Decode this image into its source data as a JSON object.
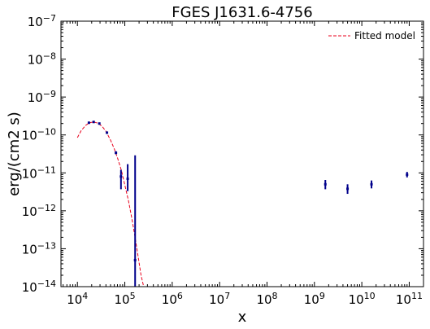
{
  "chart_data": {
    "type": "scatter",
    "title": "FGES J1631.6-4756",
    "xlabel": "x",
    "ylabel": "erg/(cm2 s)",
    "xscale": "log",
    "yscale": "log",
    "xlim": [
      4500.0,
      200000000000.0
    ],
    "ylim": [
      1e-14,
      1e-07
    ],
    "x_ticks": [
      {
        "value": 10000.0,
        "base": "10",
        "exp": "4"
      },
      {
        "value": 100000.0,
        "base": "10",
        "exp": "5"
      },
      {
        "value": 1000000.0,
        "base": "10",
        "exp": "6"
      },
      {
        "value": 10000000.0,
        "base": "10",
        "exp": "7"
      },
      {
        "value": 100000000.0,
        "base": "10",
        "exp": "8"
      },
      {
        "value": 1000000000.0,
        "base": "10",
        "exp": "9"
      },
      {
        "value": 10000000000.0,
        "base": "10",
        "exp": "10"
      },
      {
        "value": 100000000000.0,
        "base": "10",
        "exp": "11"
      }
    ],
    "y_ticks": [
      {
        "value": 1e-14,
        "base": "10",
        "exp": "−14"
      },
      {
        "value": 1e-13,
        "base": "10",
        "exp": "−13"
      },
      {
        "value": 1e-12,
        "base": "10",
        "exp": "−12"
      },
      {
        "value": 1e-11,
        "base": "10",
        "exp": "−11"
      },
      {
        "value": 1e-10,
        "base": "10",
        "exp": "−10"
      },
      {
        "value": 1e-09,
        "base": "10",
        "exp": "−9"
      },
      {
        "value": 1e-08,
        "base": "10",
        "exp": "−8"
      },
      {
        "value": 1e-07,
        "base": "10",
        "exp": "−7"
      }
    ],
    "grid": false,
    "legend_position": "top-right",
    "colors": {
      "data": "#00008b",
      "model": "#e8001c",
      "axes": "#000000"
    },
    "series": [
      {
        "type": "points",
        "points": [
          {
            "x": 17500.0,
            "y": 2.1e-10,
            "ylo": 2e-10,
            "yhi": 2.2e-10
          },
          {
            "x": 22000.0,
            "y": 2.2e-10,
            "ylo": 2.1e-10,
            "yhi": 2.3e-10
          },
          {
            "x": 29000.0,
            "y": 2e-10,
            "ylo": 1.9e-10,
            "yhi": 2.1e-10
          },
          {
            "x": 42000.0,
            "y": 1.15e-10,
            "ylo": 1.08e-10,
            "yhi": 1.22e-10
          },
          {
            "x": 65000.0,
            "y": 3.4e-11,
            "ylo": 3.1e-11,
            "yhi": 3.7e-11
          },
          {
            "x": 83000.0,
            "y": 8e-12,
            "ylo": 3.7e-12,
            "yhi": 1.2e-11
          },
          {
            "x": 115000.0,
            "y": 7e-12,
            "ylo": 3.3e-12,
            "yhi": 1.7e-11
          },
          {
            "x": 165000.0,
            "y": 5e-14,
            "ylo": 1e-14,
            "yhi": 2.9e-11
          },
          {
            "x": 1700000000.0,
            "y": 5e-12,
            "ylo": 3.7e-12,
            "yhi": 6.5e-12
          },
          {
            "x": 5000000000.0,
            "y": 3.8e-12,
            "ylo": 2.8e-12,
            "yhi": 5e-12
          },
          {
            "x": 16000000000.0,
            "y": 5e-12,
            "ylo": 3.9e-12,
            "yhi": 6.3e-12
          },
          {
            "x": 90000000000.0,
            "y": 9e-12,
            "ylo": 7.6e-12,
            "yhi": 1.06e-11
          }
        ]
      },
      {
        "name": "Fitted model",
        "type": "line",
        "style": "dashed",
        "points": [
          {
            "x": 10000.0,
            "y": 8.5e-11
          },
          {
            "x": 12000.0,
            "y": 1.3e-10
          },
          {
            "x": 15000.0,
            "y": 1.8e-10
          },
          {
            "x": 18000.0,
            "y": 2.1e-10
          },
          {
            "x": 22000.0,
            "y": 2.2e-10
          },
          {
            "x": 27000.0,
            "y": 2.05e-10
          },
          {
            "x": 33000.0,
            "y": 1.7e-10
          },
          {
            "x": 40000.0,
            "y": 1.25e-10
          },
          {
            "x": 50000.0,
            "y": 7.3e-11
          },
          {
            "x": 60000.0,
            "y": 4.3e-11
          },
          {
            "x": 70000.0,
            "y": 2.5e-11
          },
          {
            "x": 85000.0,
            "y": 1.15e-11
          },
          {
            "x": 100000.0,
            "y": 4.8e-12
          },
          {
            "x": 120000.0,
            "y": 1.8e-12
          },
          {
            "x": 140000.0,
            "y": 6.5e-13
          },
          {
            "x": 160000.0,
            "y": 2.5e-13
          },
          {
            "x": 180000.0,
            "y": 1e-13
          },
          {
            "x": 200000.0,
            "y": 4.3e-14
          },
          {
            "x": 220000.0,
            "y": 2e-14
          },
          {
            "x": 250000.0,
            "y": 1e-14
          }
        ]
      }
    ]
  }
}
